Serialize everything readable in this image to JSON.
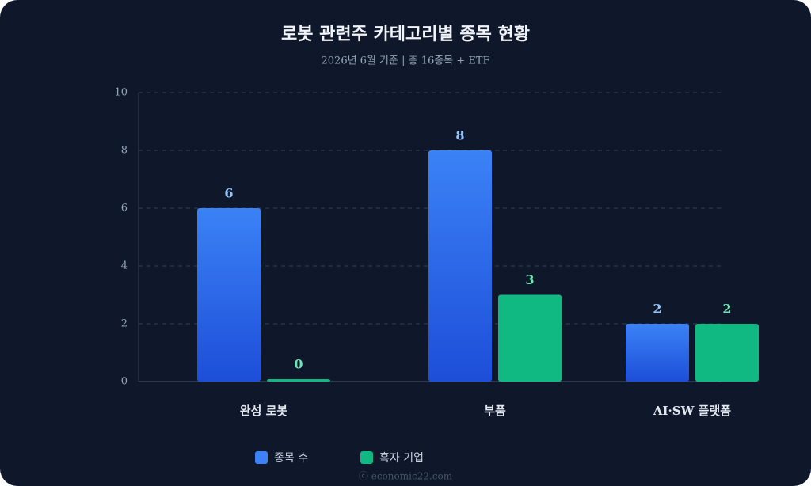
{
  "chart_data": {
    "type": "bar",
    "title": "로봇 관련주 카테고리별 종목 현황",
    "subtitle": "2026년 6월 기준 | 총 16종목 + ETF",
    "categories": [
      "완성 로봇",
      "부품",
      "AI·SW 플랫폼"
    ],
    "series": [
      {
        "name": "종목 수",
        "color": "#3b82f6",
        "values": [
          6,
          8,
          2
        ]
      },
      {
        "name": "흑자 기업",
        "color": "#10b981",
        "values": [
          0,
          3,
          2
        ]
      }
    ],
    "ylim": [
      0,
      10
    ],
    "yticks": [
      0,
      2,
      4,
      6,
      8,
      10
    ],
    "grid": true,
    "legend": "bottom",
    "watermark": "ⓒ economic22.com"
  }
}
